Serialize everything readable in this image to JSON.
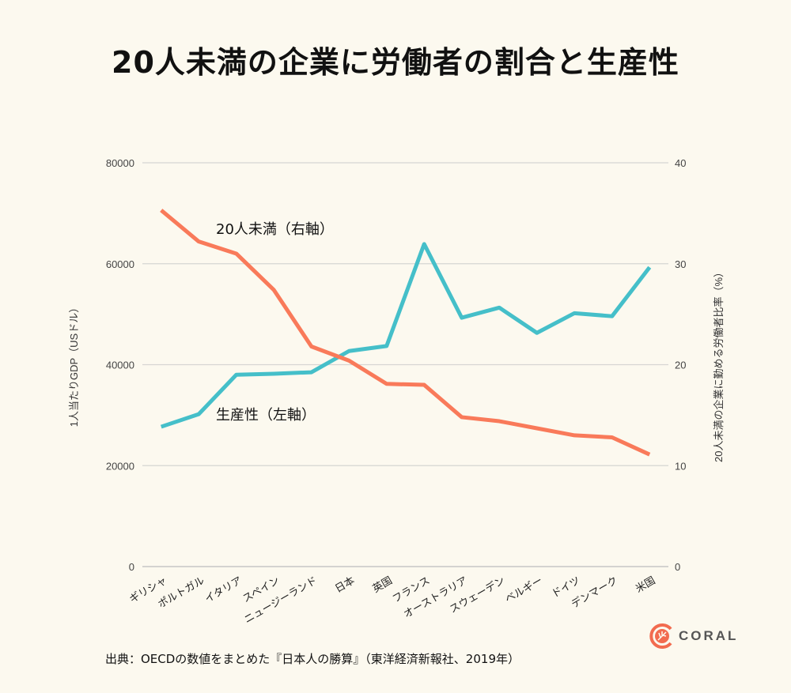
{
  "title": "20人未満の企業に労働者の割合と生産性",
  "source": "出典：OECDの数値をまとめた『日本人の勝算』（東洋経済新報社、2019年）",
  "logo": {
    "text": "CORAL",
    "color": "#f26b4f"
  },
  "chart_data": {
    "type": "line",
    "title": "20人未満の企業に労働者の割合と生産性",
    "categories": [
      "ギリシャ",
      "ポルトガル",
      "イタリア",
      "スペイン",
      "ニュージーランド",
      "日本",
      "英国",
      "フランス",
      "オーストラリア",
      "スウェーデン",
      "ベルギー",
      "ドイツ",
      "デンマーク",
      "米国"
    ],
    "y_left": {
      "label": "1人当たりGDP（USドル）",
      "range": [
        0,
        80000
      ],
      "ticks": [
        "0",
        "20000",
        "40000",
        "60000",
        "80000"
      ]
    },
    "y_right": {
      "label": "20人未満の企業に勤める労働者比率（%）",
      "range": [
        0,
        40
      ],
      "ticks": [
        "0",
        "10",
        "20",
        "30",
        "40"
      ]
    },
    "grid": true,
    "series": [
      {
        "name": "生産性（左軸）",
        "axis": "left",
        "color": "#45bfc9",
        "values": [
          27700,
          30200,
          38000,
          38200,
          38500,
          42700,
          43700,
          63900,
          49300,
          51300,
          46300,
          50200,
          49600,
          59300
        ]
      },
      {
        "name": "20人未満（右軸）",
        "axis": "right",
        "color": "#f97a5a",
        "values": [
          35.3,
          32.2,
          31.0,
          27.4,
          21.8,
          20.4,
          18.1,
          18.0,
          14.8,
          14.4,
          13.7,
          13.0,
          12.8,
          11.1
        ]
      }
    ]
  }
}
